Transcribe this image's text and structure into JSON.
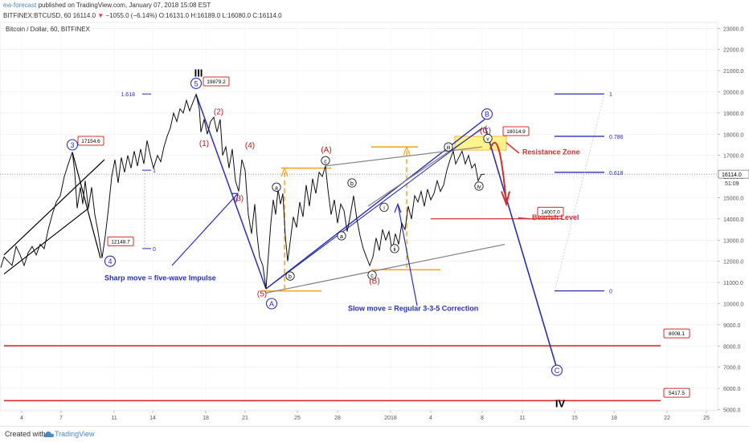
{
  "header": {
    "publisher": "ew-forecast",
    "published_text": "published on TradingView.com, January 07, 2018 15:08 EST",
    "symbol": "BITFINEX:BTCUSD, 60",
    "last": "16114.0",
    "change": "−1055.0 (−6.14%)",
    "o": "O:16131.0",
    "h": "H:16189.0",
    "l": "L:16080.0",
    "c": "C:16114.0",
    "chart_title": "Bitcoin / Dollar, 60, BITFINEX"
  },
  "footer": {
    "created_with": "Created with",
    "brand": "TradingView"
  },
  "colors": {
    "blue": "#2a2fb5",
    "red": "#d32f2f",
    "orange": "#f5a623",
    "price": "#000000",
    "fib": "#2a2fb5"
  },
  "chart_data": {
    "type": "line",
    "title": "Bitcoin / Dollar, 60, BITFINEX",
    "ylim": [
      5000,
      23000
    ],
    "yticks": [
      "23000.0",
      "22000.0",
      "21000.0",
      "20000.0",
      "19000.0",
      "18000.0",
      "17000.0",
      "16000.0",
      "15000.0",
      "14000.0",
      "13000.0",
      "12000.0",
      "11000.0",
      "10000.0",
      "9000.0",
      "8000.0",
      "7000.0",
      "6000.0",
      "5000.0"
    ],
    "xticks": [
      "4",
      "7",
      "11",
      "14",
      "18",
      "21",
      "25",
      "28",
      "2018",
      "4",
      "8",
      "11",
      "15",
      "18",
      "22",
      "25"
    ],
    "last_price_label": "16114.0",
    "countdown_label": "51:09",
    "price_path": [
      [
        1,
        11700
      ],
      [
        5,
        12200
      ],
      [
        10,
        12000
      ],
      [
        15,
        11800
      ],
      [
        20,
        12700
      ],
      [
        25,
        12300
      ],
      [
        30,
        11800
      ],
      [
        35,
        12400
      ],
      [
        40,
        12700
      ],
      [
        45,
        12300
      ],
      [
        50,
        12800
      ],
      [
        55,
        12600
      ],
      [
        60,
        13500
      ],
      [
        65,
        14200
      ],
      [
        70,
        14800
      ],
      [
        75,
        15100
      ],
      [
        80,
        16000
      ],
      [
        85,
        16600
      ],
      [
        90,
        17154
      ],
      [
        93,
        16200
      ],
      [
        96,
        14500
      ],
      [
        100,
        15500
      ],
      [
        103,
        14700
      ],
      [
        106,
        15800
      ],
      [
        110,
        14500
      ],
      [
        114,
        15500
      ],
      [
        118,
        14200
      ],
      [
        122,
        13400
      ],
      [
        127,
        12150
      ],
      [
        131,
        13200
      ],
      [
        135,
        14500
      ],
      [
        139,
        16000
      ],
      [
        143,
        16800
      ],
      [
        147,
        15700
      ],
      [
        151,
        16900
      ],
      [
        155,
        16200
      ],
      [
        159,
        17000
      ],
      [
        163,
        16400
      ],
      [
        167,
        17200
      ],
      [
        171,
        16500
      ],
      [
        175,
        17300
      ],
      [
        179,
        16600
      ],
      [
        183,
        17700
      ],
      [
        187,
        17000
      ],
      [
        191,
        16400
      ],
      [
        196,
        17000
      ],
      [
        200,
        16700
      ],
      [
        204,
        17400
      ],
      [
        208,
        17900
      ],
      [
        212,
        18300
      ],
      [
        216,
        19000
      ],
      [
        220,
        18600
      ],
      [
        224,
        19200
      ],
      [
        228,
        19000
      ],
      [
        232,
        19600
      ],
      [
        236,
        19100
      ],
      [
        240,
        19500
      ],
      [
        244,
        19879
      ],
      [
        248,
        19200
      ],
      [
        250,
        18100
      ],
      [
        254,
        18700
      ],
      [
        258,
        18000
      ],
      [
        262,
        18600
      ],
      [
        266,
        18800
      ],
      [
        270,
        18100
      ],
      [
        274,
        18700
      ],
      [
        277,
        17000
      ],
      [
        281,
        17400
      ],
      [
        285,
        16400
      ],
      [
        289,
        17300
      ],
      [
        293,
        15800
      ],
      [
        297,
        15300
      ],
      [
        301,
        16800
      ],
      [
        305,
        16300
      ],
      [
        309,
        14200
      ],
      [
        313,
        13300
      ],
      [
        317,
        14700
      ],
      [
        320,
        13200
      ],
      [
        323,
        12200
      ],
      [
        327,
        11800
      ],
      [
        331,
        10700
      ],
      [
        334,
        12300
      ],
      [
        337,
        13800
      ],
      [
        340,
        14900
      ],
      [
        343,
        14200
      ],
      [
        346,
        15400
      ],
      [
        349,
        14700
      ],
      [
        352,
        15200
      ],
      [
        355,
        13200
      ],
      [
        358,
        12000
      ],
      [
        361,
        12900
      ],
      [
        365,
        14100
      ],
      [
        369,
        13600
      ],
      [
        373,
        14800
      ],
      [
        377,
        14100
      ],
      [
        381,
        15600
      ],
      [
        385,
        14600
      ],
      [
        389,
        15900
      ],
      [
        393,
        15200
      ],
      [
        397,
        16200
      ],
      [
        401,
        16000
      ],
      [
        405,
        16500
      ],
      [
        408,
        15400
      ],
      [
        412,
        14200
      ],
      [
        416,
        14900
      ],
      [
        420,
        13800
      ],
      [
        424,
        14700
      ],
      [
        428,
        14400
      ],
      [
        432,
        13400
      ],
      [
        436,
        14200
      ],
      [
        440,
        15100
      ],
      [
        444,
        14000
      ],
      [
        448,
        13200
      ],
      [
        452,
        12600
      ],
      [
        456,
        12200
      ],
      [
        460,
        11800
      ],
      [
        464,
        12200
      ],
      [
        468,
        13100
      ],
      [
        472,
        12500
      ],
      [
        476,
        13500
      ],
      [
        480,
        13000
      ],
      [
        484,
        13400
      ],
      [
        488,
        12500
      ],
      [
        492,
        13300
      ],
      [
        496,
        12800
      ],
      [
        500,
        13800
      ],
      [
        504,
        13500
      ],
      [
        508,
        14600
      ],
      [
        512,
        14000
      ],
      [
        516,
        15100
      ],
      [
        520,
        14800
      ],
      [
        524,
        15300
      ],
      [
        528,
        14600
      ],
      [
        532,
        15400
      ],
      [
        536,
        14900
      ],
      [
        540,
        15200
      ],
      [
        544,
        15800
      ],
      [
        548,
        15300
      ],
      [
        552,
        15600
      ],
      [
        556,
        16300
      ],
      [
        560,
        16800
      ],
      [
        564,
        17200
      ],
      [
        567,
        16600
      ],
      [
        571,
        16900
      ],
      [
        575,
        17200
      ],
      [
        579,
        16600
      ],
      [
        583,
        17000
      ],
      [
        587,
        16400
      ],
      [
        591,
        16600
      ],
      [
        595,
        15800
      ],
      [
        599,
        16100
      ],
      [
        603,
        16114
      ]
    ],
    "series": [
      {
        "values": [
          [
            5,
            12300
          ],
          [
            130,
            16800
          ]
        ]
      },
      {
        "values": [
          [
            5,
            11400
          ],
          [
            110,
            14500
          ]
        ]
      },
      {
        "values": [
          [
            90,
            17154
          ],
          [
            125,
            12150
          ]
        ]
      },
      {
        "values": [
          [
            244,
            19879
          ],
          [
            331,
            10700
          ]
        ]
      },
      {
        "values": [
          [
            331,
            10700
          ],
          [
            603,
            18700
          ]
        ]
      },
      {
        "values": [
          [
            405,
            16500
          ],
          [
            600,
            17400
          ]
        ]
      },
      {
        "values": [
          [
            331,
            10500
          ],
          [
            628,
            12800
          ]
        ]
      },
      {
        "values": [
          [
            458,
            14600
          ],
          [
            606,
            18400
          ]
        ]
      },
      {
        "values": [
          [
            604,
            18300
          ],
          [
            694,
            6800
          ]
        ]
      }
    ],
    "levels": [
      {
        "label": "18014.9",
        "value": 18014.9
      },
      {
        "label": "14007.0",
        "value": 14007.0
      },
      {
        "label": "8008.1",
        "value": 8008.1
      },
      {
        "label": "5417.5",
        "value": 5417.5
      },
      {
        "label": "19879.2",
        "value": 19879.2
      },
      {
        "label": "17154.6",
        "value": 17154.6
      },
      {
        "label": "12148.7",
        "value": 12148.7
      }
    ],
    "fib_left": [
      {
        "label": "1.618",
        "value": 19900
      },
      {
        "label": "1",
        "value": 16300
      },
      {
        "label": "0",
        "value": 12600
      }
    ],
    "fib_right": [
      {
        "label": "1",
        "value": 19900
      },
      {
        "label": "0.786",
        "value": 17900
      },
      {
        "label": "0.618",
        "value": 16200
      },
      {
        "label": "0",
        "value": 10600
      }
    ],
    "annotations": {
      "resistance": "Resistance Zone",
      "bearish": "Bearish Level",
      "impulse": "Sharp move = five-wave Impulse",
      "correction": "Slow move = Regular 3-3-5 Correction"
    },
    "wave_labels": [
      {
        "text": "III",
        "x": 247,
        "v": 20900,
        "style": "black-bold"
      },
      {
        "text": "IV",
        "x": 697,
        "v": 5300,
        "style": "black-bold"
      },
      {
        "text": "3",
        "x": 90,
        "v": 17500,
        "style": "blue-circle"
      },
      {
        "text": "4",
        "x": 137,
        "v": 12000,
        "style": "blue-circle"
      },
      {
        "text": "5",
        "x": 244,
        "v": 20400,
        "style": "blue-circle"
      },
      {
        "text": "A",
        "x": 338,
        "v": 10000,
        "style": "blue-circle"
      },
      {
        "text": "B",
        "x": 606,
        "v": 18950,
        "style": "blue-circle"
      },
      {
        "text": "C",
        "x": 693,
        "v": 6850,
        "style": "blue-circle"
      },
      {
        "text": "(1)",
        "x": 254,
        "v": 17600,
        "style": "red"
      },
      {
        "text": "(2)",
        "x": 272,
        "v": 19100,
        "style": "red"
      },
      {
        "text": "(3)",
        "x": 297,
        "v": 15000,
        "style": "red"
      },
      {
        "text": "(4)",
        "x": 311,
        "v": 17500,
        "style": "red"
      },
      {
        "text": "(5)",
        "x": 326,
        "v": 10500,
        "style": "red"
      },
      {
        "text": "(A)",
        "x": 406,
        "v": 17300,
        "style": "red"
      },
      {
        "text": "(B)",
        "x": 466,
        "v": 11100,
        "style": "red"
      },
      {
        "text": "(C)",
        "x": 604,
        "v": 18200,
        "style": "red"
      },
      {
        "text": "a",
        "x": 344,
        "v": 15500,
        "style": "black-circle"
      },
      {
        "text": "b",
        "x": 361,
        "v": 11300,
        "style": "black-circle"
      },
      {
        "text": "c",
        "x": 405,
        "v": 16750,
        "style": "black-circle"
      },
      {
        "text": "b",
        "x": 438,
        "v": 15700,
        "style": "black-circle"
      },
      {
        "text": "a",
        "x": 425,
        "v": 13200,
        "style": "black-circle"
      },
      {
        "text": "c",
        "x": 463,
        "v": 11350,
        "style": "black-circle"
      },
      {
        "text": "i",
        "x": 478,
        "v": 14550,
        "style": "black-circle"
      },
      {
        "text": "ii",
        "x": 491,
        "v": 12600,
        "style": "black-circle"
      },
      {
        "text": "iii",
        "x": 558,
        "v": 17400,
        "style": "black-circle"
      },
      {
        "text": "iv",
        "x": 596,
        "v": 15550,
        "style": "black-circle"
      },
      {
        "text": "v",
        "x": 607,
        "v": 17800,
        "style": "black-circle"
      }
    ]
  }
}
